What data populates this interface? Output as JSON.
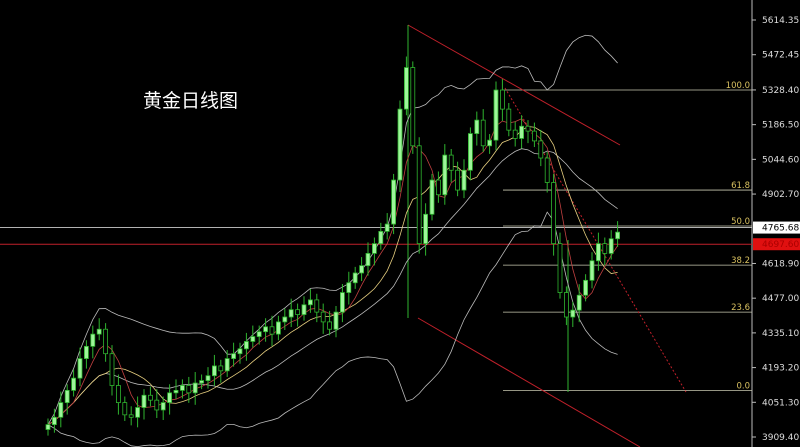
{
  "chart_data": {
    "type": "candlestick",
    "title": "黄金日线图",
    "ylim": [
      3909.4,
      5614.35
    ],
    "y_ticks": [
      "5614.35",
      "5472.45",
      "5328.40",
      "5186.50",
      "5044.60",
      "4902.70",
      "4618.90",
      "4477.00",
      "4335.10",
      "4193.20",
      "4051.30",
      "3909.40"
    ],
    "current_price": "4765.68",
    "red_line_price": "4697.60",
    "colors": {
      "up": "#9ef59a",
      "down": "#2fb52f",
      "channel": "#c0202a",
      "fib": "#c8c8b0",
      "price_box": "#e01010"
    },
    "fib_levels": [
      {
        "label": "100.0",
        "price": 5328
      },
      {
        "label": "61.8",
        "price": 4919
      },
      {
        "label": "50.0",
        "price": 4772
      },
      {
        "label": "38.2",
        "price": 4612
      },
      {
        "label": "23.6",
        "price": 4420
      },
      {
        "label": "0.0",
        "price": 4100
      }
    ],
    "close": [
      3960,
      3990,
      4050,
      4100,
      4150,
      4230,
      4280,
      4330,
      4350,
      4250,
      4120,
      4050,
      4000,
      3990,
      4030,
      4080,
      4060,
      4020,
      4050,
      4090,
      4100,
      4120,
      4090,
      4130,
      4140,
      4160,
      4200,
      4180,
      4230,
      4250,
      4270,
      4300,
      4320,
      4340,
      4360,
      4330,
      4380,
      4400,
      4430,
      4410,
      4450,
      4470,
      4420,
      4380,
      4350,
      4420,
      4500,
      4540,
      4580,
      4610,
      4660,
      4700,
      4750,
      4780,
      4960,
      5250,
      5420,
      5100,
      4700,
      4820,
      4960,
      4900,
      5062,
      5000,
      4919,
      5000,
      5150,
      5205,
      5100,
      5123,
      5328,
      5250,
      5164,
      5130,
      5180,
      5160,
      5120,
      5050,
      4950,
      4700,
      4500,
      4400,
      4428,
      4489,
      4550,
      4630,
      4700,
      4660,
      4720,
      4747
    ]
  }
}
